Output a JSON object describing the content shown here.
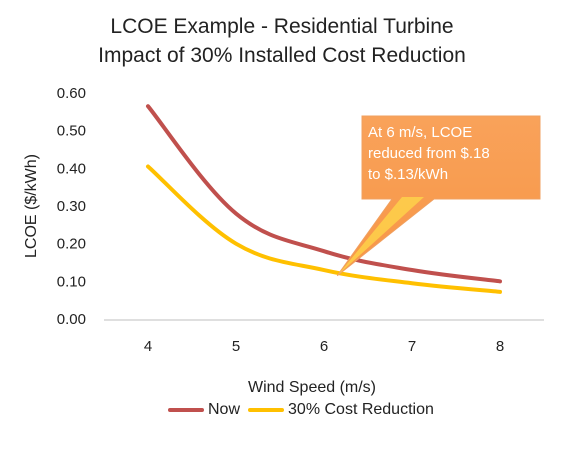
{
  "chart_data": {
    "type": "line",
    "title": "LCOE Example - Residential Turbine",
    "subtitle": "Impact of 30% Installed Cost Reduction",
    "xlabel": "Wind Speed (m/s)",
    "ylabel": "LCOE ($/kWh)",
    "x": [
      4,
      5,
      6,
      7,
      8
    ],
    "x_tick_labels": [
      "4",
      "5",
      "6",
      "7",
      "8"
    ],
    "ylim": [
      0,
      0.6
    ],
    "y_ticks": [
      0,
      0.1,
      0.2,
      0.3,
      0.4,
      0.5,
      0.6
    ],
    "y_tick_labels": [
      "0.00",
      "0.10",
      "0.20",
      "0.30",
      "0.40",
      "0.50",
      "0.60"
    ],
    "grid": false,
    "legend_position": "bottom",
    "series": [
      {
        "name": "Now",
        "color": "#c0504d",
        "values": [
          0.565,
          0.28,
          0.18,
          0.13,
          0.1
        ]
      },
      {
        "name": "30% Cost Reduction",
        "color": "#ffc000",
        "values": [
          0.405,
          0.2,
          0.13,
          0.095,
          0.072
        ]
      }
    ],
    "annotation": {
      "lines": [
        "At 6 m/s, LCOE",
        "reduced from $.18",
        "to $.13/kWh"
      ],
      "color": "#f79646",
      "target_x": 6.15,
      "target_y": 0.115
    }
  }
}
